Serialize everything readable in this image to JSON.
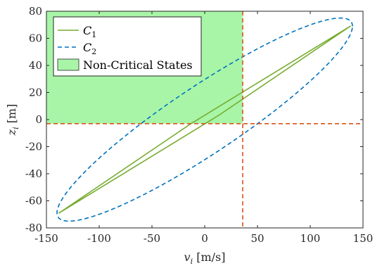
{
  "chart_data": {
    "type": "line",
    "xlabel_var": "v",
    "xlabel_sub": "i",
    "xlabel_unit": "[m/s]",
    "ylabel_var": "z",
    "ylabel_sub": "i",
    "ylabel_unit": "[m]",
    "xlim": [
      -150,
      150
    ],
    "ylim": [
      -80,
      80
    ],
    "xticks": [
      -150,
      -100,
      -50,
      0,
      50,
      100,
      150
    ],
    "yticks": [
      -80,
      -60,
      -40,
      -20,
      0,
      20,
      40,
      60,
      80
    ],
    "grid": false,
    "legend_position": "top-left",
    "critical_point": {
      "v": 36,
      "z": -3
    },
    "series": [
      {
        "name": "C",
        "name_sub": "1",
        "style": "solid",
        "color": "#77ac30",
        "points": [
          [
            -138,
            -69
          ],
          [
            138,
            69
          ]
        ],
        "polygon": [
          [
            -138,
            -69
          ],
          [
            -13,
            -3
          ],
          [
            138,
            69
          ],
          [
            13,
            3
          ]
        ]
      },
      {
        "name": "C",
        "name_sub": "2",
        "style": "dashed",
        "color": "#0072bd",
        "ellipse": {
          "center": [
            0,
            0
          ],
          "extreme_v": [
            -140,
            140
          ],
          "extreme_z": [
            -75,
            75
          ],
          "passes_through": [
            [
              -51,
              -3
            ],
            [
              36,
              42
            ],
            [
              36,
              -5
            ],
            [
              138,
              69
            ]
          ]
        }
      }
    ],
    "region": {
      "name": "Non-Critical States",
      "color": "#a8f5a8",
      "v_range": [
        -150,
        36
      ],
      "z_range": [
        -3,
        80
      ]
    },
    "reference_lines": {
      "color": "#d95319",
      "style": "dashed",
      "v": 36,
      "z": -3
    }
  }
}
